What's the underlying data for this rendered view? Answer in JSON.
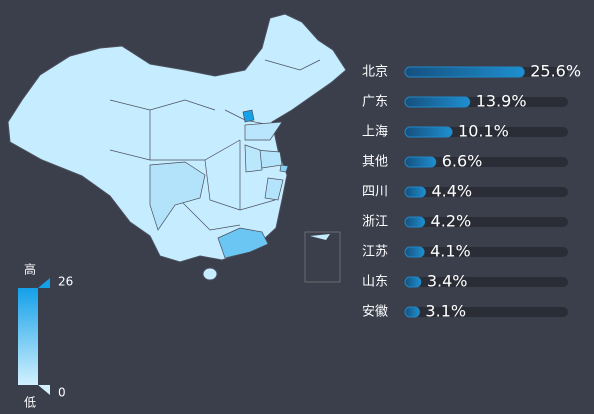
{
  "chart_data": [
    {
      "type": "map",
      "visual_map": {
        "min": 0,
        "max": 26,
        "high_text": "高",
        "low_text": "低",
        "colors": [
          "#d2f1ff",
          "#14a0e8"
        ]
      },
      "area_color": "#c6ecff"
    },
    {
      "type": "bar",
      "orientation": "horizontal",
      "categories": [
        "北京",
        "广东",
        "上海",
        "其他",
        "四川",
        "浙江",
        "江苏",
        "山东",
        "安徽"
      ],
      "values": [
        25.6,
        13.9,
        10.1,
        6.6,
        4.4,
        4.2,
        4.1,
        3.4,
        3.1
      ],
      "value_labels": [
        "25.6%",
        "13.9%",
        "10.1%",
        "6.6%",
        "4.4%",
        "4.2%",
        "4.1%",
        "3.4%",
        "3.1%"
      ],
      "xlim": [
        0,
        35
      ],
      "color": "#1e88c8",
      "track_color": "#2a2d35"
    }
  ]
}
